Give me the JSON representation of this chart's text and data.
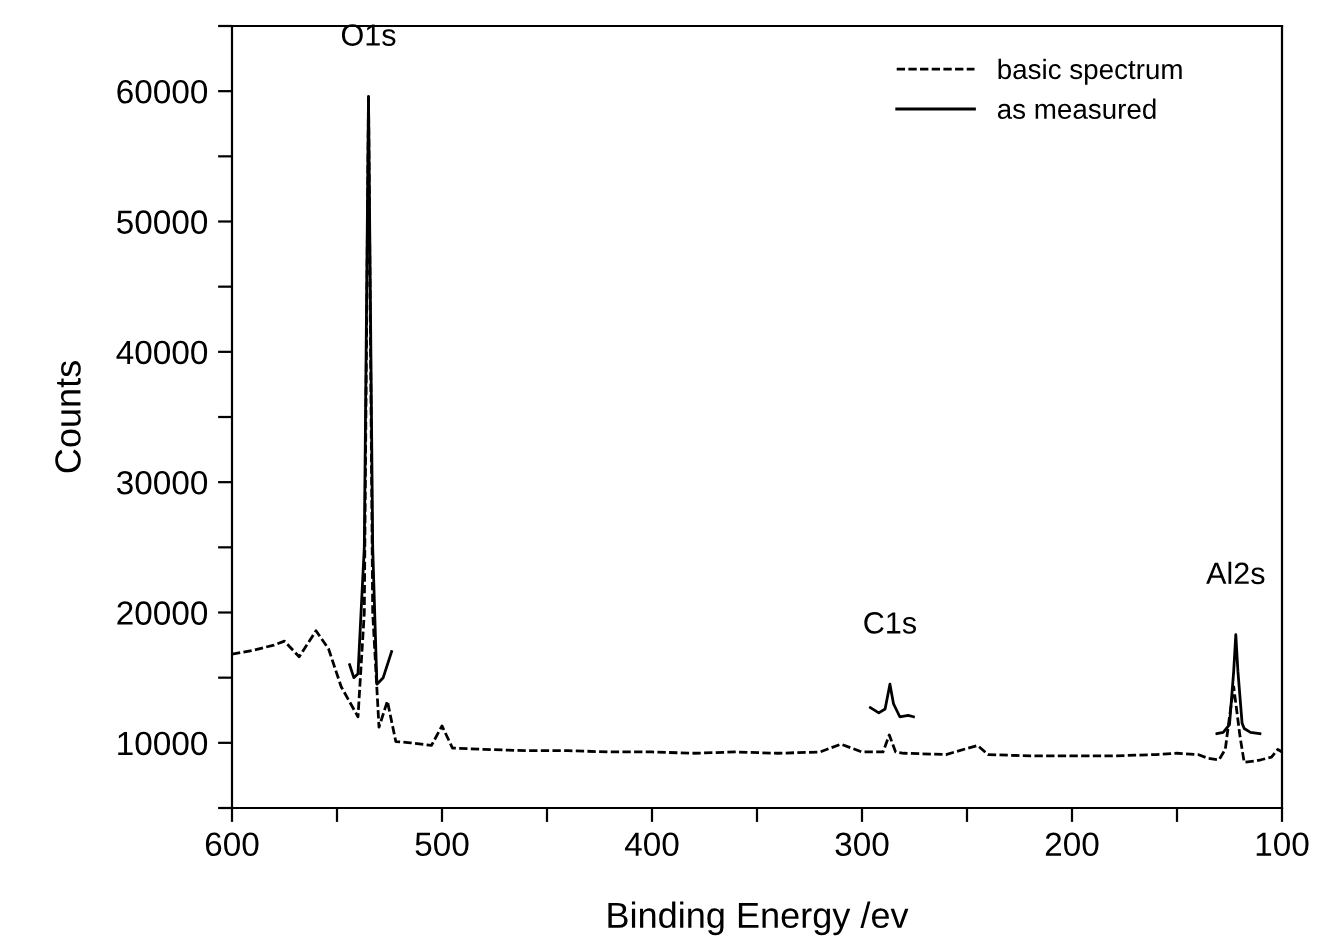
{
  "chart_data": {
    "type": "line",
    "xlabel": "Binding Energy /ev",
    "ylabel": "Counts",
    "xlim": [
      600,
      100
    ],
    "xticks": [
      600,
      {
        "value": 550,
        "label": null
      },
      500,
      {
        "value": 450,
        "label": null
      },
      400,
      {
        "value": 350,
        "label": null
      },
      300,
      {
        "value": 250,
        "label": null
      },
      200,
      {
        "value": 150,
        "label": null
      },
      100
    ],
    "ylim": [
      5000,
      65000
    ],
    "yticks": [
      {
        "value": 5000,
        "label": null
      },
      10000,
      {
        "value": 15000,
        "label": null
      },
      20000,
      {
        "value": 25000,
        "label": null
      },
      30000,
      {
        "value": 35000,
        "label": null
      },
      40000,
      {
        "value": 45000,
        "label": null
      },
      50000,
      {
        "value": 55000,
        "label": null
      },
      60000,
      {
        "value": 65000,
        "label": null
      }
    ],
    "grid": false,
    "legend": "top right",
    "series": [
      {
        "name": "basic spectrum",
        "color": "#000000",
        "line_style": "dashed",
        "x": [
          600,
          590,
          580,
          575,
          568,
          560,
          554,
          548,
          540,
          537,
          535,
          533,
          530,
          526,
          522,
          515,
          505,
          500,
          495,
          480,
          460,
          440,
          420,
          400,
          380,
          360,
          340,
          320,
          310,
          300,
          290,
          287,
          284,
          280,
          260,
          245,
          240,
          220,
          200,
          180,
          160,
          150,
          140,
          135,
          130,
          127,
          125,
          123,
          120,
          118,
          113,
          110,
          105,
          102,
          100
        ],
        "values": [
          16800,
          17100,
          17500,
          17800,
          16600,
          18600,
          17200,
          14300,
          12000,
          20000,
          59500,
          20000,
          11200,
          13200,
          10100,
          10000,
          9800,
          11300,
          9600,
          9500,
          9400,
          9400,
          9300,
          9300,
          9200,
          9300,
          9200,
          9300,
          9900,
          9300,
          9300,
          10600,
          9300,
          9200,
          9100,
          9800,
          9100,
          9000,
          9000,
          9000,
          9100,
          9200,
          9100,
          8800,
          8700,
          9500,
          12000,
          14300,
          10500,
          8500,
          8600,
          8700,
          8900,
          9500,
          9300
        ]
      },
      {
        "name": "as measured",
        "color": "#000000",
        "line_style": "solid",
        "x": [
          544,
          542,
          540,
          537,
          535,
          533,
          531,
          528,
          524,
          520,
          296,
          292,
          289,
          286.7,
          285,
          282,
          278,
          275.5,
          260,
          131,
          128,
          125,
          123,
          122,
          121,
          119,
          118,
          115,
          110.5
        ],
        "values": [
          16000,
          15000,
          15300,
          25000,
          59600,
          25000,
          14500,
          15000,
          17000,
          null,
          12700,
          12300,
          12600,
          14500,
          13000,
          12000,
          12100,
          12000,
          null,
          10700,
          10800,
          11400,
          15500,
          18300,
          15500,
          11500,
          11100,
          10800,
          10700
        ]
      }
    ],
    "annotations": [
      {
        "text": "O1s",
        "x": 535,
        "y": 59600
      },
      {
        "text": "C1s",
        "x": 286.7,
        "y": 14500
      },
      {
        "text": "Al2s",
        "x": 122,
        "y": 18300
      }
    ]
  }
}
